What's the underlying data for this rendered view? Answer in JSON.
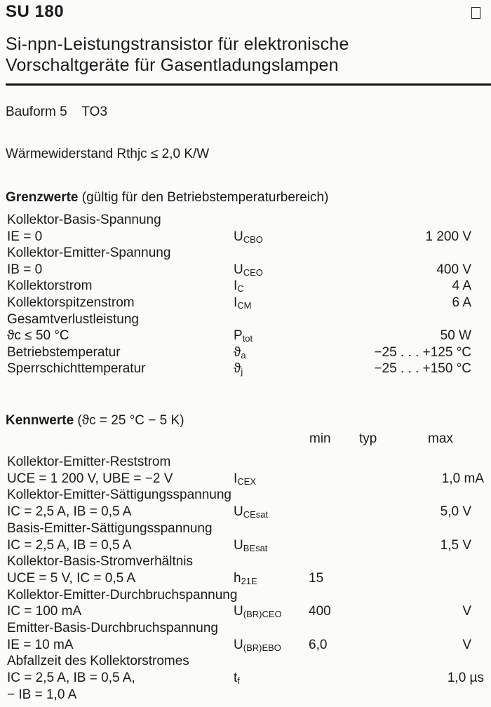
{
  "header": {
    "part_number": "SU 180",
    "title_line1": "Si-npn-Leistungstransistor für elektronische",
    "title_line2": "Vorschaltgeräte für Gasentladungslampen"
  },
  "package": "Bauform 5    TO3",
  "thermal_resistance": "Wärmewiderstand Rthjc ≤ 2,0 K/W",
  "limits": {
    "heading_bold": "Grenzwerte",
    "heading_rest": " (gültig für den Betriebstemperaturbereich)",
    "rows": [
      {
        "label": "Kollektor-Basis-Spannung"
      },
      {
        "label": "IE = 0",
        "sym": "U",
        "sub": "CBO",
        "value": "1 200 V"
      },
      {
        "label": "Kollektor-Emitter-Spannung"
      },
      {
        "label": "IB = 0",
        "sym": "U",
        "sub": "CEO",
        "value": "400 V"
      },
      {
        "label": "Kollektorstrom",
        "sym": "I",
        "sub": "C",
        "value": "4 A"
      },
      {
        "label": "Kollektorspitzenstrom",
        "sym": "I",
        "sub": "CM",
        "value": "6 A"
      },
      {
        "label": "Gesamtverlustleistung"
      },
      {
        "label": "ϑc  ≤ 50 °C",
        "sym": "P",
        "sub": "tot",
        "value": "50 W"
      },
      {
        "label": "Betriebstemperatur",
        "sym": "ϑ",
        "sub": "a",
        "value": "−25 . . . +125 °C"
      },
      {
        "label": "Sperrschichttemperatur",
        "sym": "ϑ",
        "sub": "j",
        "value": "−25 . . . +150 °C"
      }
    ]
  },
  "characteristics": {
    "heading_bold": "Kennwerte",
    "heading_rest": " (ϑc = 25 °C − 5 K)",
    "columns": {
      "min": "min",
      "typ": "typ",
      "max": "max"
    },
    "rows": [
      {
        "label": "Kollektor-Emitter-Reststrom"
      },
      {
        "label": "UCE = 1 200 V, UBE = −2 V",
        "sym": "I",
        "sub": "CEX",
        "max": "1,0 mA"
      },
      {
        "label": "Kollektor-Emitter-Sättigungsspannung"
      },
      {
        "label": "IC = 2,5 A, IB = 0,5 A",
        "sym": "U",
        "sub": "CEsat",
        "max": "5,0 V"
      },
      {
        "label": "Basis-Emitter-Sättigungsspannung"
      },
      {
        "label": "IC = 2,5 A, IB = 0,5 A",
        "sym": "U",
        "sub": "BEsat",
        "max": "1,5 V"
      },
      {
        "label": "Kollektor-Basis-Stromverhältnis"
      },
      {
        "label": "UCE = 5 V, IC = 0,5 A",
        "sym": "h",
        "sub": "21E",
        "min": "15"
      },
      {
        "label": "Kollektor-Emitter-Durchbruchspannung"
      },
      {
        "label": "IC = 100 mA",
        "sym": "U",
        "sub": "(BR)CEO",
        "min": "400",
        "max": "V"
      },
      {
        "label": "Emitter-Basis-Durchbruchspannung"
      },
      {
        "label": "IE = 10 mA",
        "sym": "U",
        "sub": "(BR)EBO",
        "min": "6,0",
        "max": "V"
      },
      {
        "label": "Abfallzeit des Kollektorstromes"
      },
      {
        "label": "IC = 2,5 A, IB = 0,5 A,",
        "sym": "t",
        "sub": "f",
        "max": "1,0 µs"
      },
      {
        "label": "− IB = 1,0 A"
      }
    ]
  }
}
